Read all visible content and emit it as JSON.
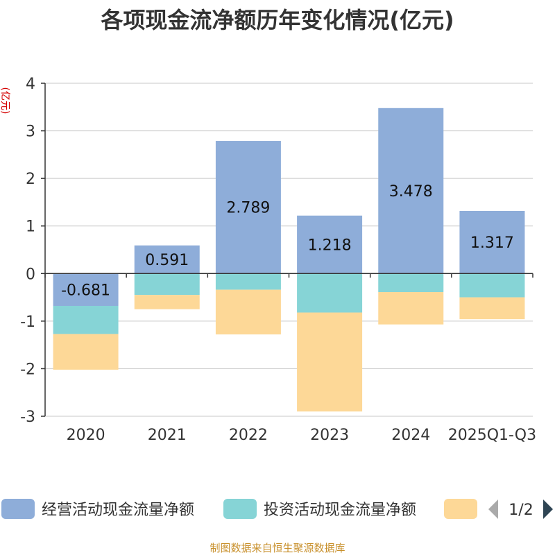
{
  "chart_data": {
    "type": "bar",
    "stacked": true,
    "title": "各项现金流净额历年变化情况(亿元)",
    "ylabel": "(亿元)",
    "ylim": [
      -3,
      4
    ],
    "yticks": [
      -3,
      -2,
      -1,
      0,
      1,
      2,
      3,
      4
    ],
    "categories": [
      "2020",
      "2021",
      "2022",
      "2023",
      "2024",
      "2025Q1-Q3"
    ],
    "series": [
      {
        "name": "经营活动现金流量净额",
        "color": "#8eadd9",
        "values": [
          -0.681,
          0.591,
          2.789,
          1.218,
          3.478,
          1.317
        ],
        "labels": [
          "-0.681",
          "0.591",
          "2.789",
          "1.218",
          "3.478",
          "1.317"
        ]
      },
      {
        "name": "投资活动现金流量净额",
        "color": "#86d4d6",
        "values": [
          -0.59,
          -0.45,
          -0.34,
          -0.82,
          -0.39,
          -0.5
        ]
      },
      {
        "name": "",
        "color": "#fdd897",
        "values": [
          -0.75,
          -0.3,
          -0.94,
          -2.08,
          -0.68,
          -0.46
        ]
      }
    ],
    "legend": {
      "position": "bottom",
      "page": "1/2"
    }
  },
  "footer": {
    "source": "制图数据来自恒生聚源数据库"
  }
}
